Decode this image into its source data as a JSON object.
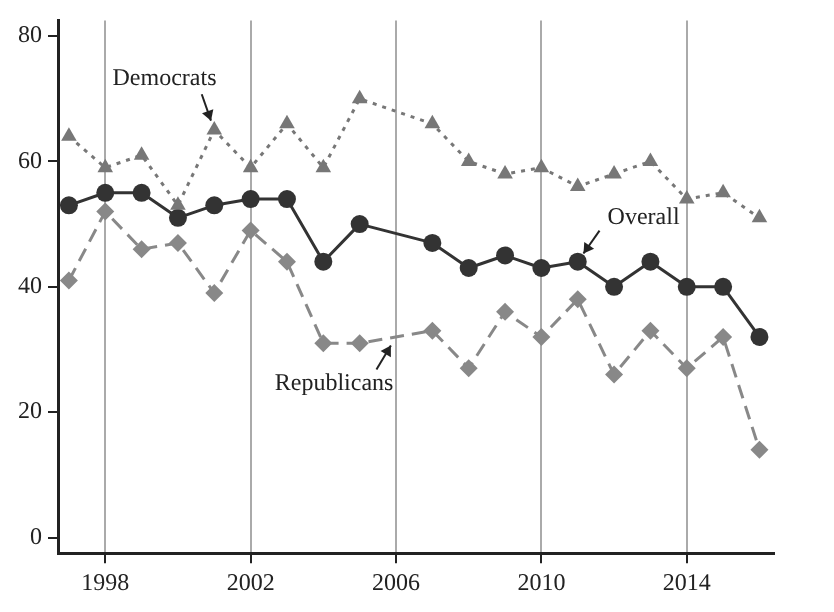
{
  "chart_data": {
    "type": "line",
    "x": [
      1997,
      1998,
      1999,
      2000,
      2001,
      2002,
      2003,
      2004,
      2005,
      2007,
      2008,
      2009,
      2010,
      2011,
      2012,
      2013,
      2014,
      2015,
      2016
    ],
    "series": [
      {
        "color": "#777777",
        "marker": "triangle",
        "line_style": "dotted",
        "values": [
          64,
          59,
          61,
          53,
          65,
          59,
          66,
          59,
          70,
          66,
          60,
          58,
          59,
          56,
          58,
          60,
          54,
          55,
          51
        ]
      },
      {
        "color": "#333333",
        "marker": "circle",
        "line_style": "solid",
        "values": [
          53,
          55,
          55,
          51,
          53,
          54,
          54,
          44,
          50,
          47,
          43,
          45,
          43,
          44,
          40,
          44,
          40,
          40,
          32
        ]
      },
      {
        "color": "#888888",
        "marker": "diamond",
        "line_style": "dashed",
        "values": [
          41,
          52,
          46,
          47,
          39,
          49,
          44,
          31,
          31,
          33,
          27,
          36,
          32,
          38,
          26,
          33,
          27,
          32,
          14
        ]
      }
    ],
    "annotations": [
      {
        "text": "Democrats",
        "x": 2001,
        "y": 65
      },
      {
        "text": "Overall",
        "x": 2011,
        "y": 44
      },
      {
        "text": "Republicans",
        "x": 2006,
        "y": 32
      }
    ],
    "xlim": [
      1996.7,
      2016.4
    ],
    "xticks": [
      1998,
      2002,
      2006,
      2010,
      2014
    ],
    "ylim": [
      -2.5,
      82.5
    ],
    "yticks": [
      0,
      20,
      40,
      60,
      80
    ],
    "grid": "x",
    "legend": false
  }
}
